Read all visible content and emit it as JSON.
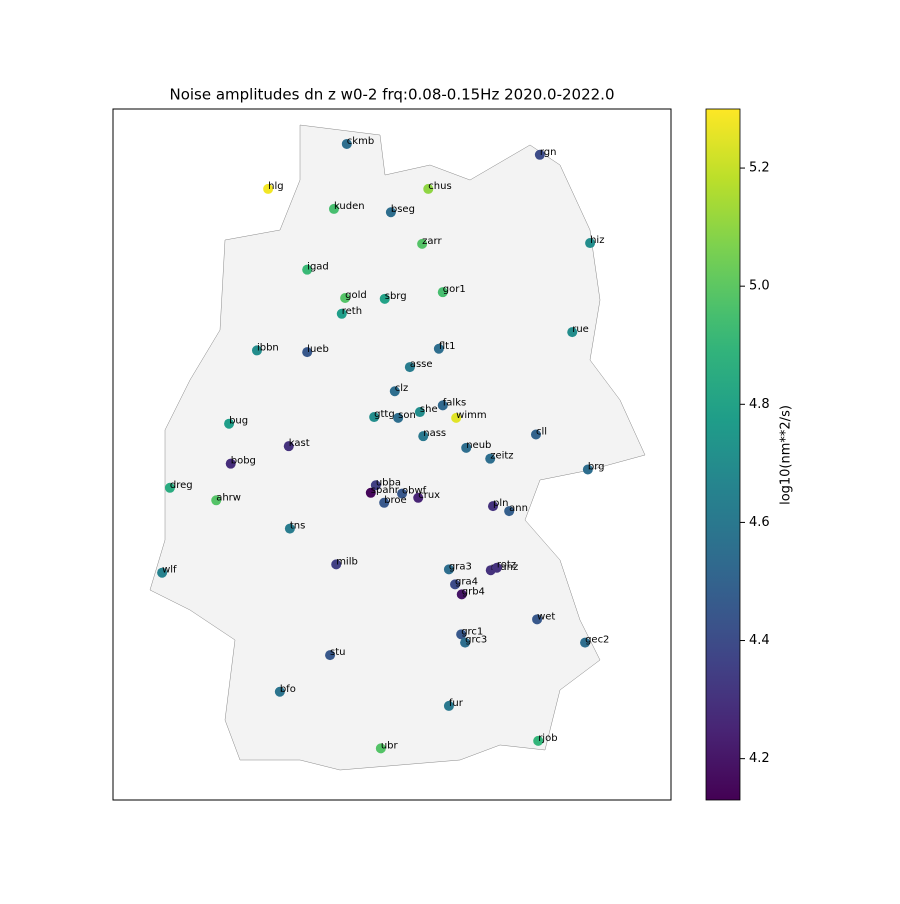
{
  "chart_data": {
    "type": "scatter",
    "title": "Noise amplitudes dn z w0-2 frq:0.08-0.15Hz 2020.0-2022.0",
    "colorbar_label": "log10(nm**2/s)",
    "colormap": "viridis",
    "clim": [
      4.13,
      5.3
    ],
    "cticks": [
      4.2,
      4.4,
      4.6,
      4.8,
      5.0,
      5.2
    ],
    "xlim": [
      5.5,
      15.5
    ],
    "ylim": [
      47.0,
      55.3
    ],
    "labels": [
      "ckmb",
      "rgn",
      "hlg",
      "chus",
      "kuden",
      "bseg",
      "zarr",
      "hiz",
      "igad",
      "gor1",
      "gold",
      "sbrg",
      "reth",
      "rue",
      "ibbn",
      "lueb",
      "flt1",
      "asse",
      "clz",
      "falks",
      "wimm",
      "gttg",
      "son",
      "bug",
      "she",
      "nass",
      "kast",
      "neub",
      "cll",
      "zeitz",
      "bobg",
      "brg",
      "ubba",
      "obwf",
      "dreg",
      "spahr",
      "crux",
      "ahrw",
      "broe",
      "ann",
      "pln",
      "tns",
      "manz",
      "milb",
      "wlf",
      "gra3",
      "rotz",
      "gra4",
      "grb4",
      "wet",
      "grc1",
      "gec2",
      "grc3",
      "stu",
      "bfo",
      "fur",
      "rjob",
      "ubr"
    ],
    "x": [
      9.69,
      13.15,
      8.28,
      11.15,
      9.46,
      10.48,
      11.04,
      14.05,
      8.98,
      11.41,
      9.66,
      10.37,
      9.6,
      13.73,
      8.08,
      8.98,
      11.34,
      10.82,
      10.55,
      11.41,
      11.65,
      10.18,
      10.61,
      7.58,
      11.0,
      11.06,
      8.65,
      11.83,
      13.08,
      12.26,
      7.61,
      14.01,
      10.21,
      10.68,
      6.52,
      10.12,
      10.97,
      7.35,
      10.36,
      12.6,
      12.31,
      8.67,
      12.27,
      9.5,
      6.38,
      11.52,
      12.38,
      11.63,
      11.75,
      13.1,
      11.74,
      13.96,
      11.81,
      9.39,
      8.49,
      11.52,
      13.12,
      10.3
    ],
    "y": [
      54.88,
      54.75,
      54.34,
      54.34,
      54.1,
      54.06,
      53.68,
      53.69,
      53.37,
      53.1,
      53.03,
      53.02,
      52.84,
      52.62,
      52.4,
      52.38,
      52.42,
      52.2,
      51.91,
      51.74,
      51.59,
      51.6,
      51.59,
      51.52,
      51.66,
      51.37,
      51.25,
      51.23,
      51.39,
      51.1,
      51.04,
      50.97,
      50.78,
      50.68,
      50.75,
      50.69,
      50.63,
      50.6,
      50.57,
      50.47,
      50.53,
      50.26,
      49.76,
      49.83,
      49.73,
      49.77,
      49.79,
      49.59,
      49.47,
      49.17,
      48.99,
      48.89,
      48.89,
      48.74,
      48.3,
      48.13,
      47.71,
      47.62
    ],
    "values": [
      4.55,
      4.4,
      5.28,
      5.1,
      4.95,
      4.55,
      4.98,
      4.7,
      4.92,
      4.95,
      4.98,
      4.8,
      4.78,
      4.7,
      4.7,
      4.45,
      4.55,
      4.62,
      4.55,
      4.52,
      5.25,
      4.7,
      4.55,
      4.78,
      4.7,
      4.6,
      4.3,
      4.55,
      4.5,
      4.55,
      4.28,
      4.55,
      4.35,
      4.45,
      4.85,
      4.15,
      4.25,
      4.98,
      4.45,
      4.48,
      4.3,
      4.62,
      4.3,
      4.35,
      4.65,
      4.55,
      4.3,
      4.4,
      4.2,
      4.45,
      4.45,
      4.55,
      4.55,
      4.45,
      4.58,
      4.6,
      4.9,
      4.98
    ]
  }
}
